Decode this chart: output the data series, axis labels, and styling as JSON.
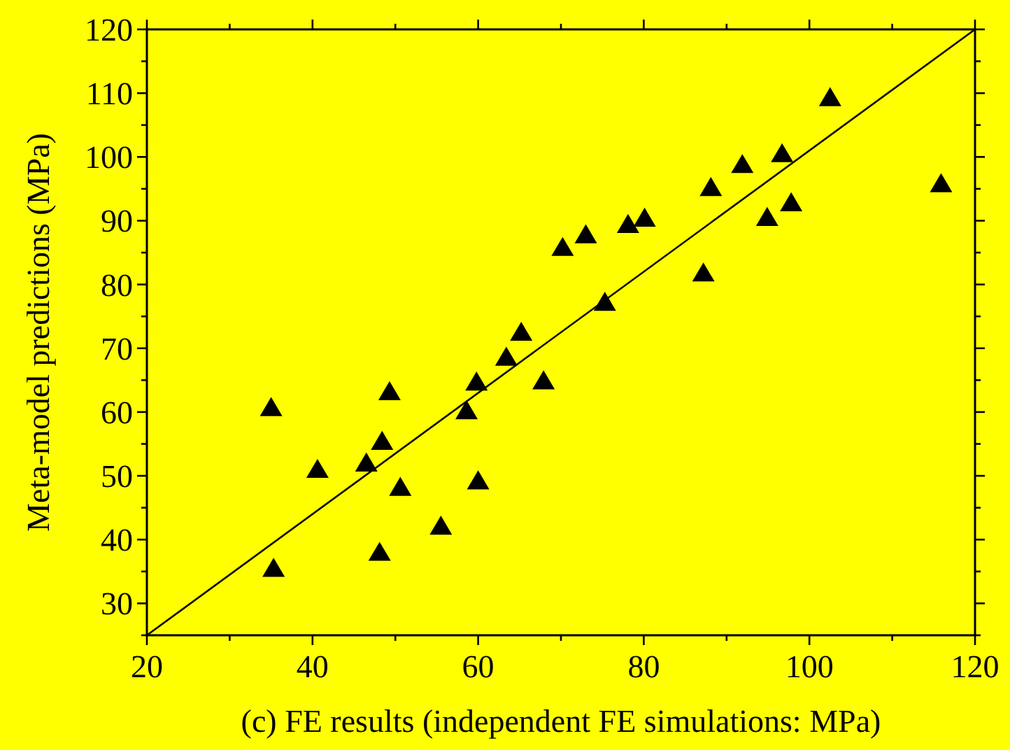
{
  "chart_data": {
    "type": "scatter",
    "xlabel": "(c) FE results (independent FE simulations: MPa)",
    "ylabel": "Meta-model predictions (MPa)",
    "xlim": [
      20,
      120
    ],
    "ylim": [
      25,
      120
    ],
    "xticks": [
      20,
      {
        "value": 30,
        "label": null
      },
      40,
      {
        "value": 50,
        "label": null
      },
      60,
      {
        "value": 70,
        "label": null
      },
      80,
      {
        "value": 90,
        "label": null
      },
      100,
      {
        "value": 110,
        "label": null
      },
      120
    ],
    "yticks": [
      {
        "value": 25,
        "label": null
      },
      30,
      {
        "value": 35,
        "label": null
      },
      40,
      {
        "value": 45,
        "label": null
      },
      50,
      {
        "value": 55,
        "label": null
      },
      60,
      {
        "value": 65,
        "label": null
      },
      70,
      {
        "value": 75,
        "label": null
      },
      80,
      {
        "value": 85,
        "label": null
      },
      90,
      {
        "value": 95,
        "label": null
      },
      100,
      {
        "value": 105,
        "label": null
      },
      110,
      {
        "value": 115,
        "label": null
      },
      120
    ],
    "grid": false,
    "series": [
      {
        "color": "#000000",
        "marker": "triangle",
        "x": [
          35.0,
          35.3,
          40.6,
          46.5,
          48.4,
          49.3,
          48.1,
          50.6,
          55.5,
          58.6,
          59.8,
          60.0,
          63.4,
          67.9,
          65.2,
          70.2,
          73.0,
          78.1,
          80.1,
          75.3,
          87.2,
          88.1,
          91.9,
          94.9,
          96.7,
          97.8,
          102.5,
          115.9
        ],
        "values": [
          60.6,
          35.4,
          50.9,
          51.9,
          55.3,
          63.1,
          37.9,
          48.1,
          42.0,
          60.1,
          64.6,
          49.1,
          68.5,
          64.8,
          72.4,
          85.7,
          87.7,
          89.3,
          90.3,
          77.1,
          81.7,
          95.1,
          98.7,
          90.4,
          100.4,
          92.7,
          109.2,
          95.7
        ]
      },
      {
        "type": "line",
        "color": "#000000",
        "marker": "none",
        "line_style": "solid",
        "x": [
          20,
          120
        ],
        "values": [
          25,
          120
        ]
      }
    ]
  }
}
